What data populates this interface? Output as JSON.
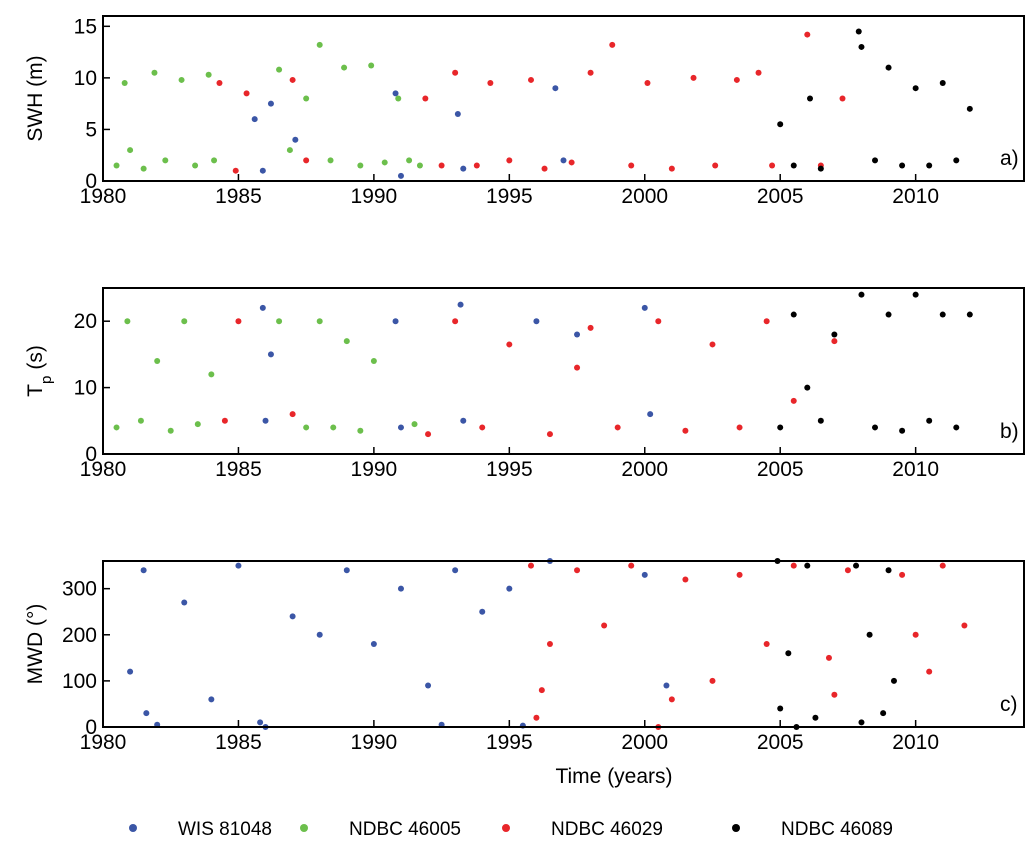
{
  "chart_data": [
    {
      "type": "scatter",
      "ylabel": "SWH (m)",
      "panel_label": "a)",
      "xlim": [
        1980,
        2014
      ],
      "xticks": [
        1980,
        1985,
        1990,
        1995,
        2000,
        2005,
        2010
      ],
      "ylim": [
        0,
        16
      ],
      "yticks": [
        0,
        5,
        10,
        15
      ],
      "series": [
        {
          "name": "WIS 81048",
          "color": "#3b56a6",
          "x": [
            1985.6,
            1985.9,
            1986.2,
            1987.1,
            1990.8,
            1991.0,
            1993.1,
            1993.3,
            1996.7,
            1997.0
          ],
          "values": [
            6,
            1,
            7.5,
            4,
            8.5,
            0.5,
            6.5,
            1.2,
            9,
            2
          ]
        },
        {
          "name": "NDBC 46005",
          "color": "#6cbf4c",
          "x": [
            1980.5,
            1980.8,
            1981.0,
            1981.5,
            1981.9,
            1982.3,
            1982.9,
            1983.4,
            1983.9,
            1984.1,
            1986.5,
            1986.9,
            1987.5,
            1988.0,
            1988.4,
            1988.9,
            1989.5,
            1989.9,
            1990.4,
            1990.9,
            1991.3,
            1991.7
          ],
          "values": [
            1.5,
            9.5,
            3,
            1.2,
            10.5,
            2,
            9.8,
            1.5,
            10.3,
            2,
            10.8,
            3,
            8,
            13.2,
            2,
            11,
            1.5,
            11.2,
            1.8,
            8,
            2,
            1.5
          ]
        },
        {
          "name": "NDBC 46029",
          "color": "#e8262a",
          "x": [
            1984.3,
            1984.9,
            1985.3,
            1987.0,
            1987.5,
            1991.9,
            1992.5,
            1993.0,
            1993.8,
            1994.3,
            1995.0,
            1995.8,
            1996.3,
            1997.3,
            1998.0,
            1998.8,
            1999.5,
            2000.1,
            2001.0,
            2001.8,
            2002.6,
            2003.4,
            2004.2,
            2004.7,
            2006.0,
            2006.5,
            2007.3
          ],
          "values": [
            9.5,
            1,
            8.5,
            9.8,
            2,
            8,
            1.5,
            10.5,
            1.5,
            9.5,
            2,
            9.8,
            1.2,
            1.8,
            10.5,
            13.2,
            1.5,
            9.5,
            1.2,
            10,
            1.5,
            9.8,
            10.5,
            1.5,
            14.2,
            1.5,
            8
          ]
        },
        {
          "name": "NDBC 46089",
          "color": "#000000",
          "x": [
            2005.0,
            2005.5,
            2006.1,
            2006.5,
            2007.9,
            2008.0,
            2008.5,
            2009.0,
            2009.5,
            2010.0,
            2010.5,
            2011.0,
            2011.5,
            2012.0
          ],
          "values": [
            5.5,
            1.5,
            8,
            1.2,
            14.5,
            13,
            2,
            11,
            1.5,
            9,
            1.5,
            9.5,
            2,
            7
          ]
        }
      ]
    },
    {
      "type": "scatter",
      "ylabel": "T",
      "ylabel_sub": "p",
      "ylabel_unit": "(s)",
      "panel_label": "b)",
      "xlim": [
        1980,
        2014
      ],
      "xticks": [
        1980,
        1985,
        1990,
        1995,
        2000,
        2005,
        2010
      ],
      "ylim": [
        0,
        25
      ],
      "yticks": [
        0,
        10,
        20
      ],
      "series": [
        {
          "color": "#3b56a6",
          "x": [
            1985.9,
            1986.0,
            1986.2,
            1990.8,
            1991.0,
            1993.2,
            1993.3,
            1996.0,
            1997.5,
            2000.0,
            2000.2
          ],
          "values": [
            22,
            5,
            15,
            20,
            4,
            22.5,
            5,
            20,
            18,
            22,
            6
          ]
        },
        {
          "color": "#6cbf4c",
          "x": [
            1980.5,
            1980.9,
            1981.4,
            1982.0,
            1982.5,
            1983.0,
            1983.5,
            1984.0,
            1987.5,
            1988.0,
            1988.5,
            1989.0,
            1989.5,
            1990.0,
            1991.5,
            1986.5
          ],
          "values": [
            4,
            20,
            5,
            14,
            3.5,
            20,
            4.5,
            12,
            4,
            20,
            4,
            17,
            3.5,
            14,
            4.5,
            20
          ]
        },
        {
          "color": "#e8262a",
          "x": [
            1984.5,
            1985.0,
            1987.0,
            1992.0,
            1993.0,
            1994.0,
            1995.0,
            1996.5,
            1997.5,
            1998.0,
            1999.0,
            2000.5,
            2001.5,
            2002.5,
            2003.5,
            2004.5,
            2005.5,
            2007.0
          ],
          "values": [
            5,
            20,
            6,
            3,
            20,
            4,
            16.5,
            3,
            13,
            19,
            4,
            20,
            3.5,
            16.5,
            4,
            20,
            8,
            17
          ]
        },
        {
          "color": "#000000",
          "x": [
            2005.0,
            2005.5,
            2006.0,
            2006.5,
            2007.0,
            2008.0,
            2008.5,
            2009.0,
            2009.5,
            2010.0,
            2010.5,
            2011.0,
            2011.5,
            2012.0
          ],
          "values": [
            4,
            21,
            10,
            5,
            18,
            24,
            4,
            21,
            3.5,
            24,
            5,
            21,
            4,
            21
          ]
        }
      ]
    },
    {
      "type": "scatter",
      "ylabel": "MWD (°)",
      "panel_label": "c)",
      "xlabel": "Time (years)",
      "xlim": [
        1980,
        2014
      ],
      "xticks": [
        1980,
        1985,
        1990,
        1995,
        2000,
        2005,
        2010
      ],
      "ylim": [
        0,
        360
      ],
      "yticks": [
        0,
        100,
        200,
        300
      ],
      "series": [
        {
          "color": "#3b56a6",
          "x": [
            1981.0,
            1981.5,
            1982.0,
            1983.0,
            1984.0,
            1985.0,
            1986.0,
            1987.0,
            1988.0,
            1989.0,
            1990.0,
            1991.0,
            1992.0,
            1992.5,
            1993.0,
            1994.0,
            1995.0,
            1995.5,
            1996.5,
            2000.0,
            2000.8,
            1981.6,
            1985.8
          ],
          "values": [
            120,
            340,
            5,
            270,
            60,
            350,
            0,
            240,
            200,
            340,
            180,
            300,
            90,
            5,
            340,
            250,
            300,
            3,
            360,
            330,
            90,
            30,
            10
          ]
        },
        {
          "color": "#e8262a",
          "x": [
            1995.8,
            1996.0,
            1996.5,
            1997.5,
            1998.5,
            1999.5,
            2000.5,
            2001.5,
            2002.5,
            2003.5,
            2004.5,
            2005.5,
            2006.8,
            2007.5,
            2009.5,
            2010.0,
            2010.5,
            2011.0,
            2011.8,
            1996.2,
            2001.0,
            2007.0
          ],
          "values": [
            350,
            20,
            180,
            340,
            220,
            350,
            0,
            320,
            100,
            330,
            180,
            350,
            150,
            340,
            330,
            200,
            120,
            350,
            220,
            80,
            60,
            70
          ]
        },
        {
          "color": "#000000",
          "x": [
            2004.9,
            2005.0,
            2005.3,
            2005.6,
            2006.0,
            2006.3,
            2007.8,
            2008.0,
            2008.3,
            2008.8,
            2009.0,
            2009.2
          ],
          "values": [
            360,
            40,
            160,
            0,
            350,
            20,
            350,
            10,
            200,
            30,
            340,
            100
          ]
        }
      ]
    }
  ]
}
